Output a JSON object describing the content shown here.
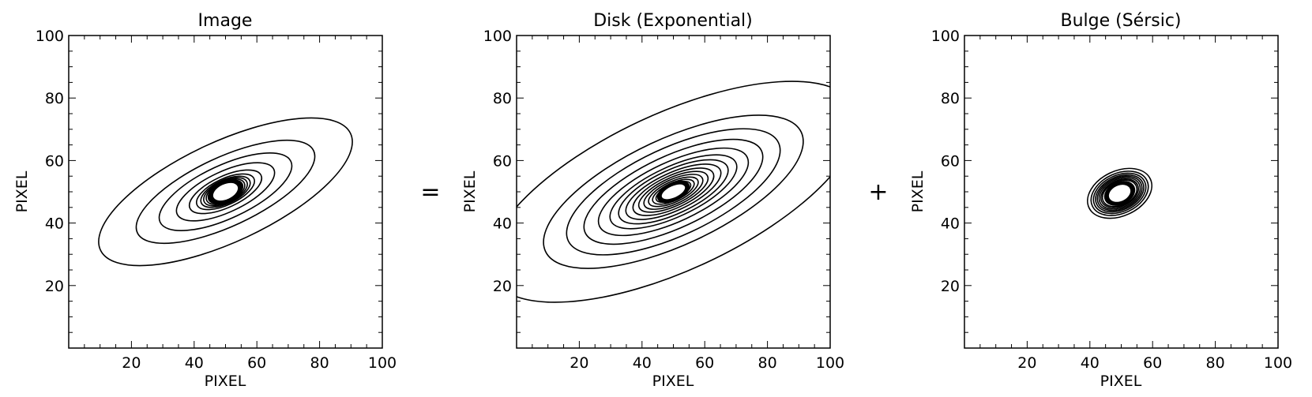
{
  "chart_data": [
    {
      "type": "contour",
      "title": "Image",
      "xlabel": "PIXEL",
      "ylabel": "PIXEL",
      "xlim": [
        0,
        100
      ],
      "ylim": [
        0,
        100
      ],
      "xticks": [
        20,
        40,
        60,
        80,
        100
      ],
      "yticks": [
        20,
        40,
        60,
        80,
        100
      ],
      "center": [
        50,
        50
      ],
      "contours": [
        {
          "a": 44,
          "b": 16,
          "angle": 25
        },
        {
          "a": 31,
          "b": 11,
          "angle": 25
        },
        {
          "a": 23,
          "b": 8.5,
          "angle": 25
        },
        {
          "a": 17,
          "b": 6.5,
          "angle": 25
        },
        {
          "a": 12.5,
          "b": 5,
          "angle": 25
        },
        {
          "a": 10,
          "b": 4.2,
          "angle": 25
        },
        {
          "a": 8.5,
          "b": 3.8,
          "angle": 25
        },
        {
          "a": 7.5,
          "b": 3.5,
          "angle": 25
        },
        {
          "a": 6.6,
          "b": 3.3,
          "angle": 25
        },
        {
          "a": 5.9,
          "b": 3.1,
          "angle": 25
        },
        {
          "a": 5.3,
          "b": 2.9,
          "angle": 25
        },
        {
          "a": 4.8,
          "b": 2.7,
          "angle": 25
        }
      ],
      "core": {
        "a": 4.2,
        "b": 2.4,
        "angle": 25
      }
    },
    {
      "type": "contour",
      "title": "Disk (Exponential)",
      "xlabel": "PIXEL",
      "ylabel": "PIXEL",
      "xlim": [
        0,
        100
      ],
      "ylim": [
        0,
        100
      ],
      "xticks": [
        20,
        40,
        60,
        80,
        100
      ],
      "yticks": [
        20,
        40,
        60,
        80,
        100
      ],
      "center": [
        50,
        50
      ],
      "contours": [
        {
          "a": 64,
          "b": 25,
          "angle": 25
        },
        {
          "a": 45,
          "b": 17,
          "angle": 25
        },
        {
          "a": 37,
          "b": 14,
          "angle": 25
        },
        {
          "a": 31,
          "b": 11.5,
          "angle": 25
        },
        {
          "a": 26,
          "b": 9.5,
          "angle": 25
        },
        {
          "a": 22,
          "b": 8,
          "angle": 25
        },
        {
          "a": 19,
          "b": 7,
          "angle": 25
        },
        {
          "a": 16.5,
          "b": 6,
          "angle": 25
        },
        {
          "a": 14,
          "b": 5.2,
          "angle": 25
        },
        {
          "a": 12,
          "b": 4.5,
          "angle": 25
        },
        {
          "a": 10.2,
          "b": 3.9,
          "angle": 25
        },
        {
          "a": 8.6,
          "b": 3.3,
          "angle": 25
        },
        {
          "a": 7.2,
          "b": 2.8,
          "angle": 25
        },
        {
          "a": 6,
          "b": 2.4,
          "angle": 25
        },
        {
          "a": 5,
          "b": 2,
          "angle": 25
        }
      ],
      "core": {
        "a": 4,
        "b": 1.8,
        "angle": 25
      }
    },
    {
      "type": "contour",
      "title": "Bulge (Sérsic)",
      "xlabel": "PIXEL",
      "ylabel": "PIXEL",
      "xlim": [
        0,
        100
      ],
      "ylim": [
        0,
        100
      ],
      "xticks": [
        20,
        40,
        60,
        80,
        100
      ],
      "yticks": [
        20,
        40,
        60,
        80,
        100
      ],
      "center": [
        49.5,
        49.5
      ],
      "contours": [
        {
          "a": 10.8,
          "b": 7.2,
          "angle": 25
        },
        {
          "a": 9.6,
          "b": 6.4,
          "angle": 25
        },
        {
          "a": 8.8,
          "b": 5.8,
          "angle": 25
        },
        {
          "a": 8.1,
          "b": 5.3,
          "angle": 25
        },
        {
          "a": 7.5,
          "b": 4.9,
          "angle": 25
        },
        {
          "a": 6.9,
          "b": 4.5,
          "angle": 25
        },
        {
          "a": 6.3,
          "b": 4.1,
          "angle": 25
        },
        {
          "a": 5.8,
          "b": 3.8,
          "angle": 25
        }
      ],
      "core": {
        "a": 3.6,
        "b": 2.5,
        "angle": 25
      }
    }
  ],
  "operators": [
    "=",
    "+"
  ]
}
